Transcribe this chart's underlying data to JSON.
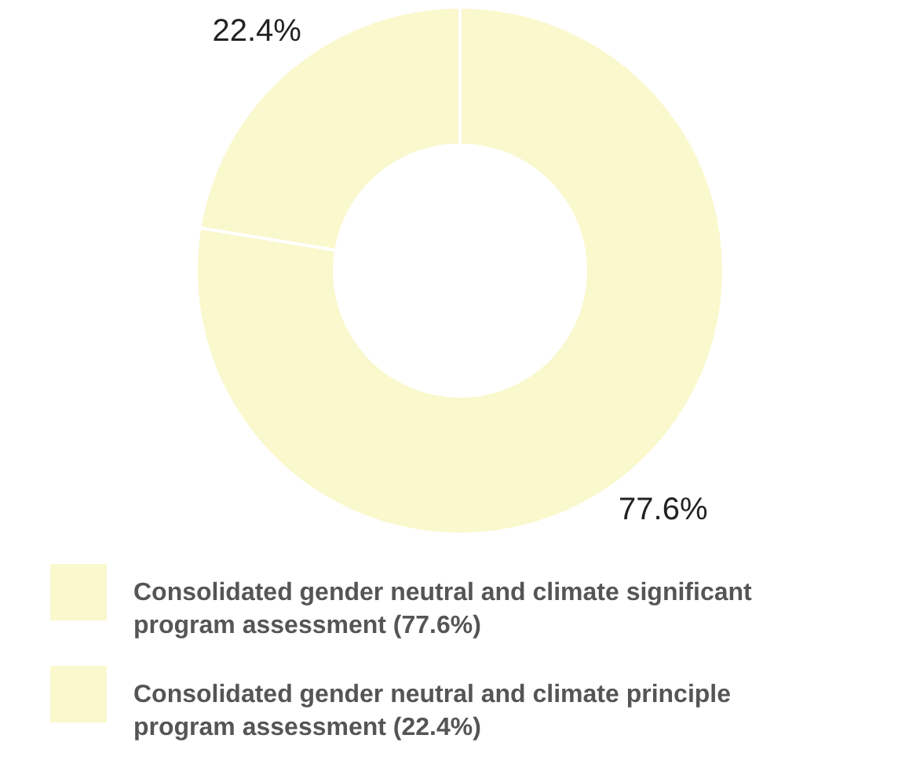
{
  "chart_data": {
    "type": "donut",
    "categories": [
      "Consolidated gender neutral and climate significant program assessment (77.6%)",
      "Consolidated gender neutral and climate principle program assessment (22.4%)"
    ],
    "values": [
      77.6,
      22.4
    ],
    "colors": [
      "#faf8cd",
      "#faf8cd"
    ],
    "value_labels": [
      "77.6%",
      "22.4%"
    ],
    "legend": "bottom"
  }
}
